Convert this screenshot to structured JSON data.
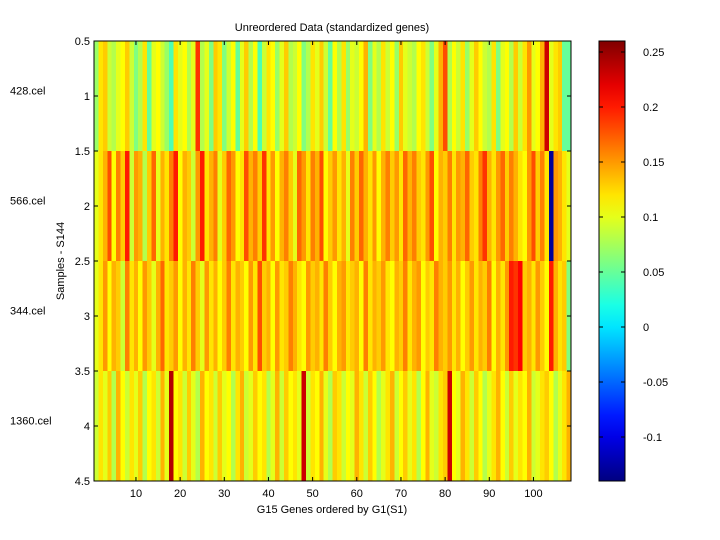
{
  "chart_data": {
    "type": "heatmap",
    "title": "Unreordered Data (standardized genes)",
    "xlabel": "G15 Genes ordered by G1(S1)",
    "ylabel": "Samples - S144",
    "xlim": [
      0.5,
      108.5
    ],
    "ylim": [
      0.5,
      4.5
    ],
    "x_ticks": [
      10,
      20,
      30,
      40,
      50,
      60,
      70,
      80,
      90,
      100
    ],
    "y_ticks": [
      0.5,
      1,
      1.5,
      2,
      2.5,
      3,
      3.5,
      4,
      4.5
    ],
    "row_labels": [
      "428.cel",
      "566.cel",
      "344.cel",
      "1360.cel"
    ],
    "colormap": "jet",
    "clim": [
      -0.14,
      0.26
    ],
    "colorbar_ticks": [
      -0.1,
      -0.05,
      0,
      0.05,
      0.1,
      0.15,
      0.2,
      0.25
    ],
    "n_genes": 108,
    "rows": [
      [
        0.07,
        0.12,
        0.13,
        0.09,
        0.08,
        0.1,
        0.11,
        0.13,
        0.09,
        0.06,
        0.08,
        0.12,
        0.05,
        0.1,
        0.11,
        0.09,
        0.07,
        0.04,
        0.12,
        0.1,
        0.11,
        0.08,
        0.1,
        0.19,
        0.08,
        0.1,
        0.06,
        0.13,
        0.12,
        0.06,
        0.09,
        0.11,
        0.05,
        0.1,
        0.13,
        0.08,
        0.11,
        0.04,
        0.09,
        0.12,
        0.11,
        0.07,
        0.1,
        0.13,
        0.08,
        0.09,
        0.11,
        0.06,
        0.08,
        0.12,
        0.1,
        0.13,
        0.09,
        0.05,
        0.11,
        0.08,
        0.12,
        0.07,
        0.1,
        0.09,
        0.11,
        0.14,
        0.06,
        0.1,
        0.08,
        0.12,
        0.09,
        0.11,
        0.07,
        0.13,
        0.1,
        0.09,
        0.08,
        0.11,
        0.12,
        0.09,
        0.06,
        0.1,
        0.14,
        0.18,
        0.08,
        0.11,
        0.09,
        0.12,
        0.07,
        0.1,
        0.13,
        0.11,
        0.09,
        0.08,
        0.12,
        0.06,
        0.1,
        0.11,
        0.08,
        0.13,
        0.09,
        0.12,
        0.15,
        0.1,
        0.11,
        0.14,
        0.23,
        0.1,
        0.12,
        0.13,
        0.05,
        0.05
      ],
      [
        0.1,
        0.12,
        0.14,
        0.18,
        0.11,
        0.16,
        0.13,
        0.2,
        0.09,
        0.15,
        0.14,
        0.08,
        0.13,
        0.17,
        0.1,
        0.14,
        0.12,
        0.16,
        0.2,
        0.11,
        0.14,
        0.13,
        0.09,
        0.15,
        0.2,
        0.12,
        0.14,
        0.16,
        0.1,
        0.13,
        0.17,
        0.15,
        0.11,
        0.12,
        0.18,
        0.14,
        0.16,
        0.13,
        0.19,
        0.12,
        0.15,
        0.11,
        0.14,
        0.16,
        0.13,
        0.1,
        0.17,
        0.15,
        0.12,
        0.16,
        0.14,
        0.18,
        0.11,
        0.13,
        0.15,
        0.12,
        0.14,
        0.1,
        0.16,
        0.13,
        0.17,
        0.14,
        0.12,
        0.15,
        0.11,
        0.14,
        0.16,
        0.13,
        0.15,
        0.12,
        0.17,
        0.14,
        0.16,
        0.13,
        0.12,
        0.15,
        0.18,
        0.11,
        0.14,
        0.13,
        0.16,
        0.12,
        0.15,
        0.14,
        0.17,
        0.13,
        0.12,
        0.16,
        0.19,
        0.14,
        0.12,
        0.15,
        0.17,
        0.13,
        0.16,
        0.14,
        0.12,
        0.11,
        0.15,
        0.18,
        0.13,
        0.16,
        0.12,
        -0.13,
        0.15,
        0.14,
        0.12,
        0.1
      ],
      [
        0.1,
        0.12,
        0.15,
        0.11,
        0.14,
        0.13,
        0.09,
        0.16,
        0.12,
        0.14,
        0.11,
        0.15,
        0.13,
        0.1,
        0.14,
        0.17,
        0.12,
        0.13,
        0.15,
        0.11,
        0.14,
        0.12,
        0.16,
        0.13,
        0.1,
        0.15,
        0.12,
        0.14,
        0.11,
        0.13,
        0.16,
        0.12,
        0.14,
        0.13,
        0.11,
        0.15,
        0.12,
        0.18,
        0.13,
        0.14,
        0.11,
        0.15,
        0.12,
        0.13,
        0.16,
        0.14,
        0.12,
        0.11,
        0.15,
        0.13,
        0.14,
        0.12,
        0.16,
        0.13,
        0.11,
        0.14,
        0.15,
        0.12,
        0.13,
        0.14,
        0.11,
        0.16,
        0.12,
        0.14,
        0.13,
        0.15,
        0.12,
        0.11,
        0.14,
        0.13,
        0.16,
        0.12,
        0.14,
        0.15,
        0.11,
        0.13,
        0.12,
        0.16,
        0.14,
        0.13,
        0.15,
        0.12,
        0.14,
        0.11,
        0.13,
        0.15,
        0.12,
        0.14,
        0.13,
        0.16,
        0.11,
        0.14,
        0.12,
        0.15,
        0.2,
        0.19,
        0.21,
        0.13,
        0.14,
        0.12,
        0.15,
        0.13,
        0.11,
        0.2,
        0.14,
        0.12,
        0.13,
        0.06
      ],
      [
        0.09,
        0.12,
        0.1,
        0.13,
        0.08,
        0.14,
        0.11,
        0.09,
        0.12,
        0.1,
        0.13,
        0.08,
        0.11,
        0.12,
        0.09,
        0.14,
        0.1,
        0.24,
        0.11,
        0.12,
        0.09,
        0.13,
        0.1,
        0.08,
        0.14,
        0.11,
        0.12,
        0.09,
        0.13,
        0.1,
        0.11,
        0.08,
        0.12,
        0.14,
        0.09,
        0.1,
        0.13,
        0.11,
        0.12,
        0.08,
        0.1,
        0.14,
        0.09,
        0.13,
        0.11,
        0.12,
        0.1,
        0.23,
        0.09,
        0.12,
        0.11,
        0.14,
        0.1,
        0.08,
        0.13,
        0.12,
        0.09,
        0.11,
        0.1,
        0.14,
        0.12,
        0.09,
        0.13,
        0.11,
        0.08,
        0.1,
        0.12,
        0.14,
        0.09,
        0.11,
        0.13,
        0.1,
        0.12,
        0.08,
        0.11,
        0.14,
        0.1,
        0.09,
        0.12,
        0.13,
        0.23,
        0.11,
        0.1,
        0.14,
        0.12,
        0.09,
        0.13,
        0.11,
        0.08,
        0.1,
        0.12,
        0.14,
        0.11,
        0.09,
        0.13,
        0.1,
        0.12,
        0.11,
        0.14,
        0.09,
        0.1,
        0.12,
        0.13,
        0.11,
        0.08,
        0.1,
        0.12,
        0.14
      ]
    ]
  }
}
